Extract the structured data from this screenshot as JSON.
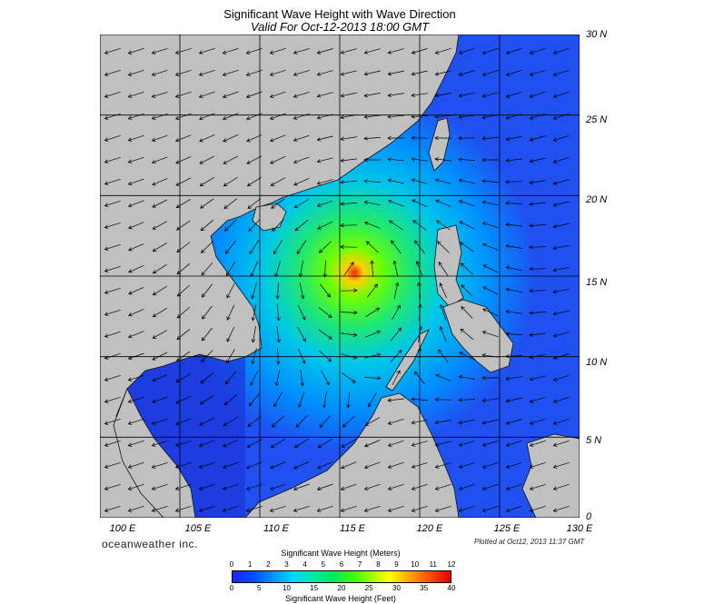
{
  "title": "Significant Wave Height with Wave Direction",
  "subtitle": "Valid For Oct-12-2013 18:00 GMT",
  "lat_labels": [
    "30 N",
    "25 N",
    "20 N",
    "15 N",
    "10 N",
    "5 N",
    "0"
  ],
  "lon_labels": [
    "100 E",
    "105 E",
    "110 E",
    "115 E",
    "120 E",
    "125 E",
    "130 E"
  ],
  "brand": "oceanweather inc.",
  "plotted": "Plotted at Oct12, 2013 11:37 GMT",
  "colorbar": {
    "title_meters": "Significant Wave Height (Meters)",
    "title_feet": "Significant Wave Height (Feet)",
    "meters_ticks": [
      "0",
      "1",
      "2",
      "3",
      "4",
      "5",
      "6",
      "7",
      "8",
      "9",
      "10",
      "11",
      "12"
    ],
    "feet_ticks": [
      "0",
      "5",
      "10",
      "15",
      "20",
      "25",
      "30",
      "35",
      "40"
    ]
  },
  "colors": {
    "land": "#c0c0c0",
    "low": "#1f3ff0",
    "mid": "#00c0f0",
    "high": "#50ff40",
    "peak": "#ff3000"
  },
  "map_extent": {
    "lon": [
      100,
      130
    ],
    "lat": [
      0,
      30
    ]
  },
  "storm_center": {
    "lon": 115.5,
    "lat": 15.5
  }
}
